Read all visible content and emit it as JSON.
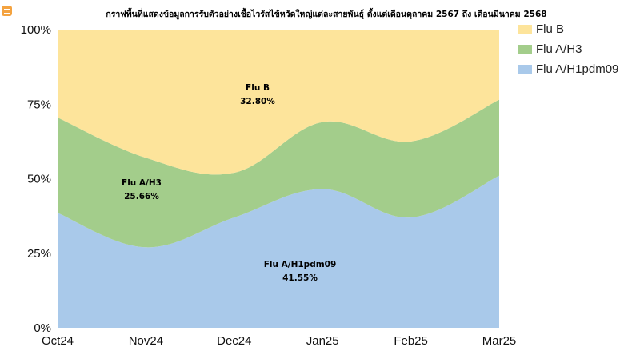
{
  "chart_data": {
    "type": "area",
    "stacked": true,
    "percent": true,
    "title": "กราฟพื้นที่แสดงข้อมูลการรับตัวอย่างเชื้อไวรัสไข้หวัดใหญ่แต่ละสายพันธุ์ ตั้งแต่เดือนตุลาคม 2567 ถึง เดือนมีนาคม 2568",
    "categories": [
      "Oct24",
      "Nov24",
      "Dec24",
      "Jan25",
      "Feb25",
      "Mar25"
    ],
    "y_ticks": [
      "0%",
      "25%",
      "50%",
      "75%",
      "100%"
    ],
    "ylim": [
      0,
      100
    ],
    "series": [
      {
        "name": "Flu A/H1pdm09",
        "color": "#a9c9ea",
        "values": [
          38.5,
          27,
          37,
          46.5,
          37,
          51
        ]
      },
      {
        "name": "Flu A/H3",
        "color": "#a3cd8b",
        "values": [
          32,
          30,
          15,
          22.5,
          25.5,
          25.5
        ]
      },
      {
        "name": "Flu B",
        "color": "#fde49b",
        "values": [
          29.5,
          43,
          48,
          31,
          37.5,
          23.5
        ]
      }
    ],
    "legend": [
      "Flu B",
      "Flu A/H3",
      "Flu A/H1pdm09"
    ],
    "legend_position": "right",
    "annotations": [
      {
        "series": "Flu B",
        "label": "Flu B",
        "value": "32.80%"
      },
      {
        "series": "Flu A/H3",
        "label": "Flu A/H3",
        "value": "25.66%"
      },
      {
        "series": "Flu A/H1pdm09",
        "label": "Flu A/H1pdm09",
        "value": "41.55%"
      }
    ]
  },
  "ui": {
    "corner_icon": "comment-icon"
  }
}
